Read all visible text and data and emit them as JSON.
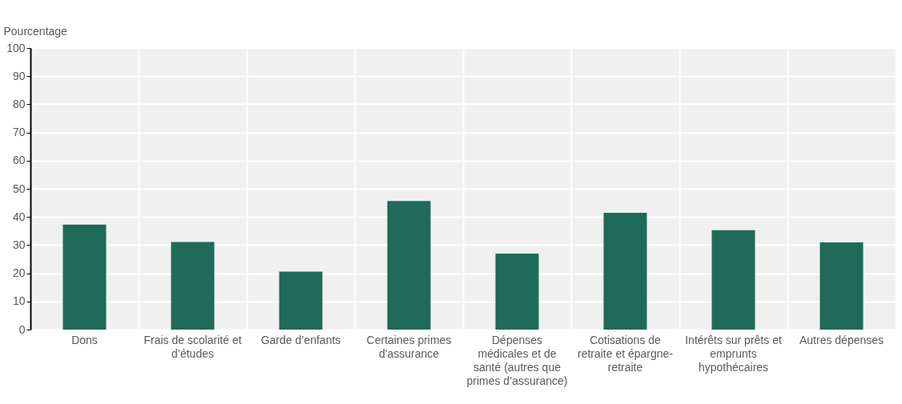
{
  "chart_data": {
    "type": "bar",
    "ylabel": "Pourcentage",
    "categories": [
      "Dons",
      "Frais de scolarité et d’études",
      "Garde d’enfants",
      "Certaines primes d'assurance",
      "Dépenses médicales et de santé (autres que primes d’assurance)",
      "Cotisations de retraite et épargne-retraite",
      "Intérêts sur prêts et emprunts hypothécaires",
      "Autres dépenses"
    ],
    "values": [
      37.3,
      31.1,
      20.6,
      45.7,
      27.0,
      41.5,
      35.3,
      31.0
    ],
    "color": "#1f6b58",
    "ylim": [
      0,
      100
    ],
    "yticks": [
      0,
      10,
      20,
      30,
      40,
      50,
      60,
      70,
      80,
      90,
      100
    ],
    "grid": true
  }
}
